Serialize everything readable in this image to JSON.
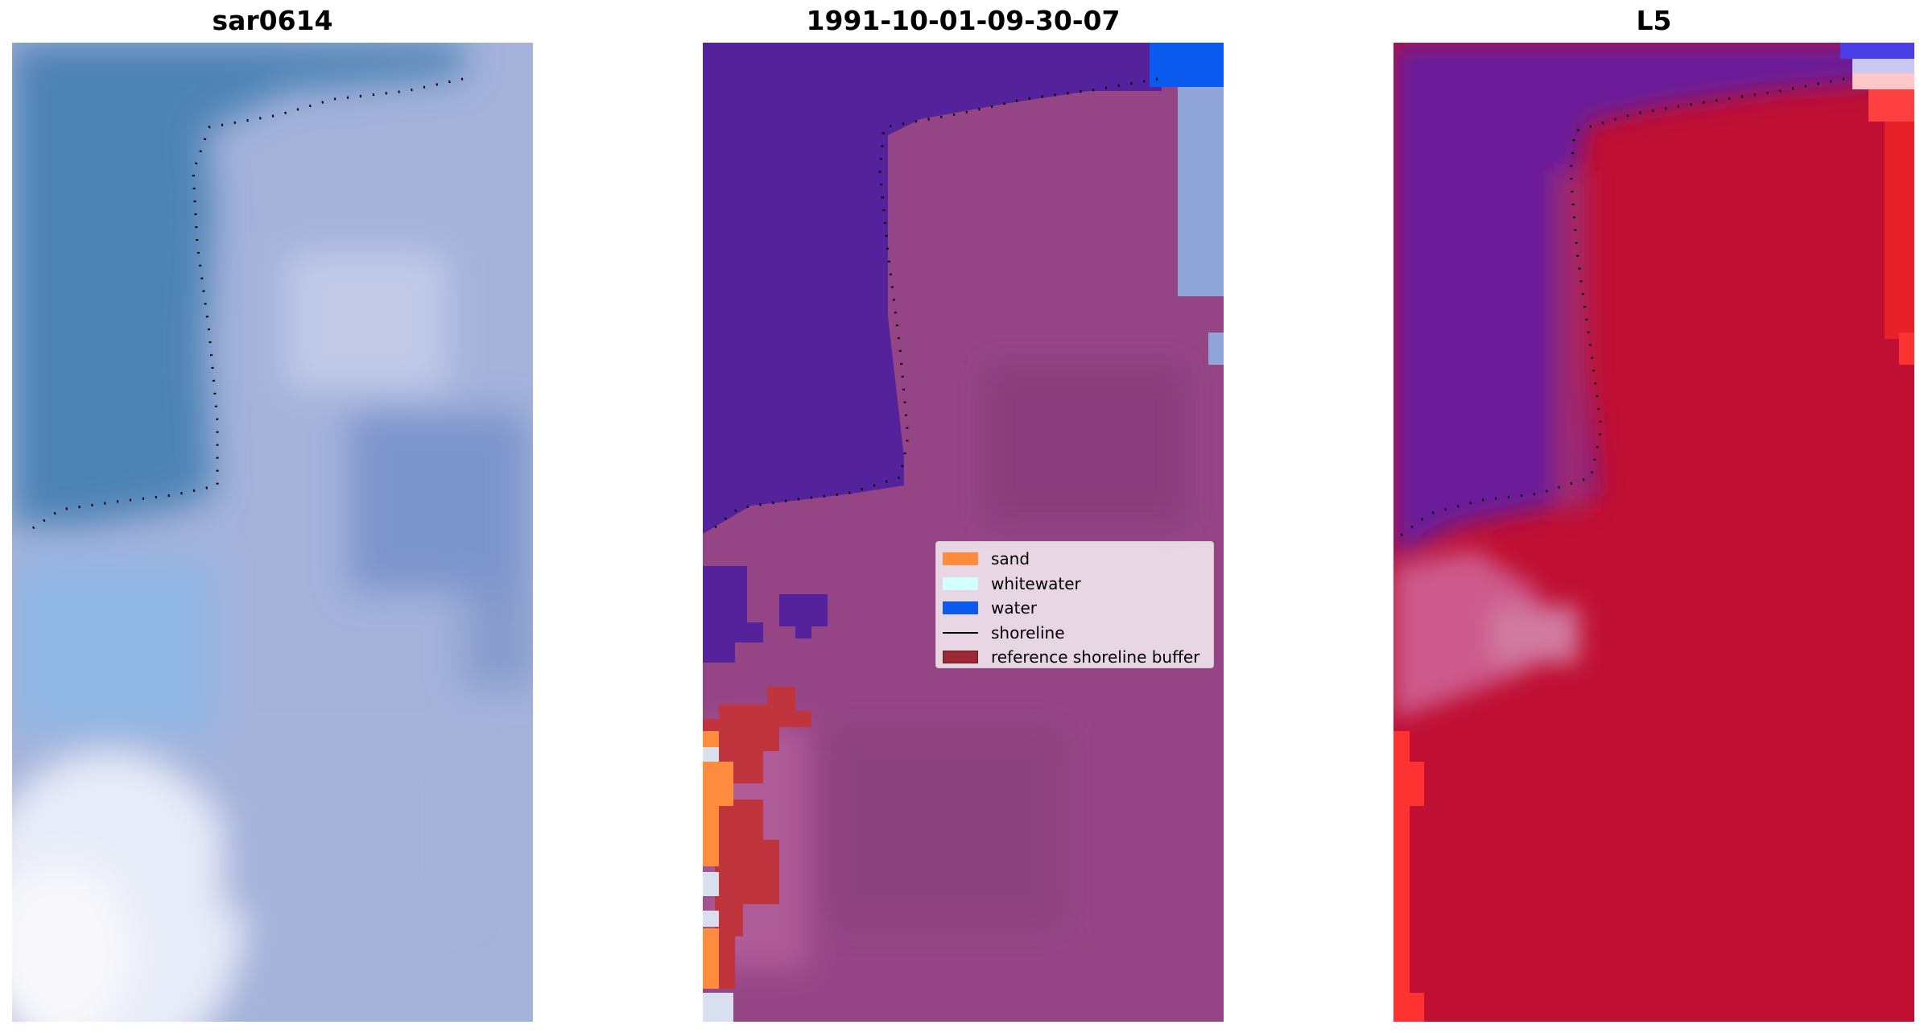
{
  "panels": [
    {
      "title": "sar0614",
      "kind": "rgb"
    },
    {
      "title": "1991-10-01-09-30-07",
      "kind": "classified"
    },
    {
      "title": "L5",
      "kind": "index"
    }
  ],
  "legend": {
    "items": [
      {
        "label": "sand",
        "color": "#ff8c3c",
        "kind": "patch"
      },
      {
        "label": "whitewater",
        "color": "#d2ffff",
        "kind": "patch"
      },
      {
        "label": "water",
        "color": "#0a5af0",
        "kind": "patch"
      },
      {
        "label": "shoreline",
        "color": "#000000",
        "kind": "line"
      },
      {
        "label": "reference shoreline buffer",
        "color": "#9b2a35",
        "kind": "patch"
      }
    ]
  },
  "colors": {
    "rgb_deep_water": "#4c82b4",
    "rgb_land": "#a6b4dc",
    "classified_water_dark": "#54229a",
    "classified_land": "#954585",
    "classified_buffer": "#c0343e",
    "classified_sand": "#ff8c3c",
    "index_water": "#6a1a9a",
    "index_land": "#c0102e",
    "index_bright_red": "#ff3232"
  }
}
